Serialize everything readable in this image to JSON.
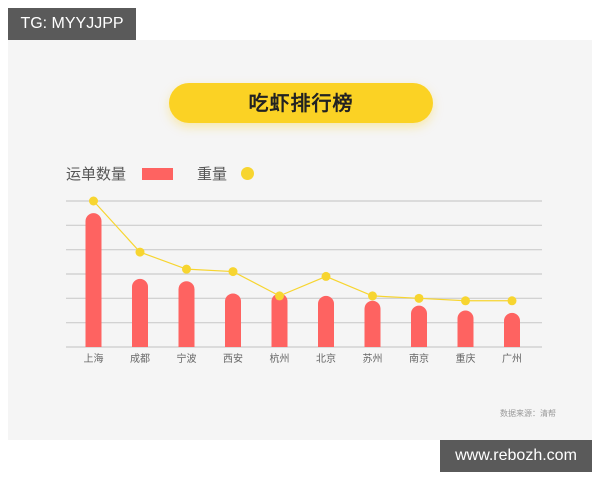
{
  "watermarks": {
    "top": "TG: MYYJJPP",
    "bottom": "www.rebozh.com"
  },
  "header": {
    "title": "吃虾排行榜"
  },
  "legend": {
    "series1_label": "运单数量",
    "series2_label": "重量"
  },
  "footer": {
    "source": "数据来源：清帮"
  },
  "colors": {
    "bar": "#fe6361",
    "line": "#f7d530",
    "title_pill": "#fbd224",
    "panel_bg": "#f5f5f5",
    "grid": "#cccccc"
  },
  "chart_data": {
    "type": "bar",
    "title": "吃虾排行榜",
    "xlabel": "",
    "ylabel": "",
    "categories": [
      "上海",
      "成都",
      "宁波",
      "西安",
      "杭州",
      "北京",
      "苏州",
      "南京",
      "重庆",
      "广州"
    ],
    "series": [
      {
        "name": "运单数量",
        "type": "bar",
        "values": [
          5.5,
          2.8,
          2.7,
          2.2,
          2.2,
          2.1,
          1.9,
          1.7,
          1.5,
          1.4
        ]
      },
      {
        "name": "重量",
        "type": "line",
        "values": [
          6.0,
          3.9,
          3.2,
          3.1,
          2.1,
          2.9,
          2.1,
          2.0,
          1.9,
          1.9
        ]
      }
    ],
    "ylim": [
      0,
      6
    ],
    "y_ticks_labeled": false,
    "grid": true,
    "gridline_count": 7,
    "legend_position": "top-left",
    "source_note": "数据来源：清帮"
  }
}
